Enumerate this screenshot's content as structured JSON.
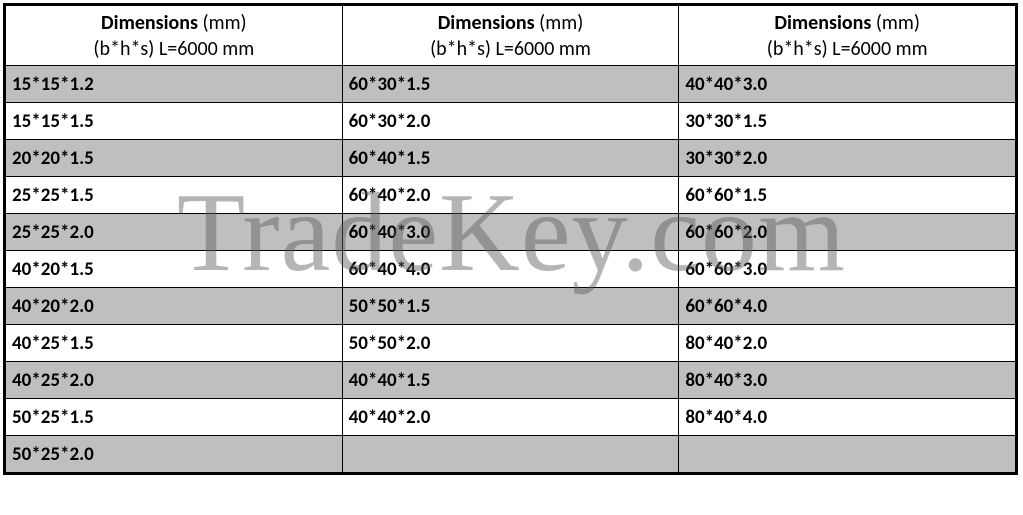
{
  "watermark": {
    "text": "TradeKey.com"
  },
  "table": {
    "header": {
      "title_bold": "Dimensions",
      "title_rest": " (mm)",
      "subtitle": "(b*h*s) L=6000 mm"
    },
    "rows": [
      {
        "shade": true,
        "c1": "15*15*1.2",
        "c2": "60*30*1.5",
        "c3": "40*40*3.0"
      },
      {
        "shade": false,
        "c1": "15*15*1.5",
        "c2": "60*30*2.0",
        "c3": "30*30*1.5"
      },
      {
        "shade": true,
        "c1": "20*20*1.5",
        "c2": "60*40*1.5",
        "c3": "30*30*2.0"
      },
      {
        "shade": false,
        "c1": "25*25*1.5",
        "c2": "60*40*2.0",
        "c3": "60*60*1.5"
      },
      {
        "shade": true,
        "c1": "25*25*2.0",
        "c2": "60*40*3.0",
        "c3": "60*60*2.0"
      },
      {
        "shade": false,
        "c1": "40*20*1.5",
        "c2": "60*40*4.0",
        "c3": "60*60*3.0"
      },
      {
        "shade": true,
        "c1": "40*20*2.0",
        "c2": "50*50*1.5",
        "c3": "60*60*4.0"
      },
      {
        "shade": false,
        "c1": "40*25*1.5",
        "c2": "50*50*2.0",
        "c3": "80*40*2.0"
      },
      {
        "shade": true,
        "c1": "40*25*2.0",
        "c2": "40*40*1.5",
        "c3": "80*40*3.0"
      },
      {
        "shade": false,
        "c1": "50*25*1.5",
        "c2": "40*40*2.0",
        "c3": "80*40*4.0"
      },
      {
        "shade": true,
        "c1": "50*25*2.0",
        "c2": "",
        "c3": ""
      }
    ]
  }
}
